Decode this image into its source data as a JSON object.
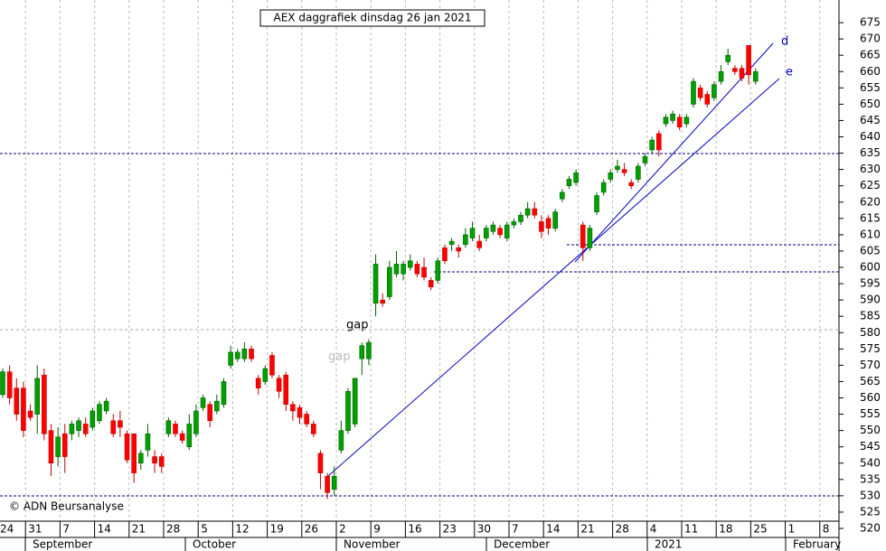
{
  "chart_data": {
    "type": "candlestick",
    "title": "AEX daggrafiek dinsdag 26 jan 2021",
    "copyright": "© ADN Beursanalyse",
    "annotations": [
      "gap",
      "gap",
      "d",
      "e"
    ],
    "ylim": [
      520,
      680
    ],
    "yticks": [
      520,
      525,
      530,
      535,
      540,
      545,
      550,
      555,
      560,
      565,
      570,
      575,
      580,
      585,
      590,
      595,
      600,
      605,
      610,
      615,
      620,
      625,
      630,
      635,
      640,
      645,
      650,
      655,
      660,
      665,
      670,
      675
    ],
    "xticks": [
      "24",
      "31",
      "7",
      "14",
      "21",
      "28",
      "5",
      "12",
      "19",
      "26",
      "2",
      "9",
      "16",
      "23",
      "30",
      "7",
      "14",
      "21",
      "28",
      "4",
      "11",
      "18",
      "25",
      "1",
      "8"
    ],
    "months": [
      "September",
      "October",
      "November",
      "December",
      "2021",
      "February"
    ],
    "up_color": "#00a000",
    "down_color": "#ff0000",
    "candles": [
      [
        561,
        569,
        560,
        568
      ],
      [
        568,
        570,
        558,
        560
      ],
      [
        563,
        566,
        553,
        555
      ],
      [
        563,
        565,
        548,
        550
      ],
      [
        556,
        558,
        553,
        554
      ],
      [
        555,
        570,
        549,
        566
      ],
      [
        567,
        569,
        547,
        549
      ],
      [
        550,
        552,
        536,
        540
      ],
      [
        542,
        551,
        539,
        548
      ],
      [
        549,
        552,
        537,
        542
      ],
      [
        549,
        553,
        547,
        552
      ],
      [
        550,
        554,
        548,
        553
      ],
      [
        552,
        554,
        548,
        549
      ],
      [
        551,
        557,
        550,
        556
      ],
      [
        553,
        559,
        552,
        558
      ],
      [
        556,
        560,
        555,
        559
      ],
      [
        553,
        555,
        548,
        549
      ],
      [
        553,
        556,
        548,
        551
      ],
      [
        549,
        550,
        540,
        541
      ],
      [
        549,
        549,
        534,
        537
      ],
      [
        540,
        544,
        538,
        543
      ],
      [
        544,
        552,
        542,
        549
      ],
      [
        542,
        544,
        537,
        540
      ],
      [
        542,
        543,
        537,
        539
      ],
      [
        549,
        554,
        548,
        553
      ],
      [
        552,
        553,
        548,
        549
      ],
      [
        549,
        550,
        546,
        547
      ],
      [
        545,
        555,
        544,
        552
      ],
      [
        549,
        558,
        548,
        556
      ],
      [
        557,
        561,
        556,
        560
      ],
      [
        558,
        559,
        551,
        553
      ],
      [
        556,
        561,
        555,
        559
      ],
      [
        558,
        566,
        557,
        565
      ],
      [
        570,
        576,
        569,
        574
      ],
      [
        572,
        575,
        571,
        574
      ],
      [
        572,
        577,
        571,
        575
      ],
      [
        575,
        576,
        571,
        572
      ],
      [
        566,
        567,
        561,
        563
      ],
      [
        565,
        570,
        564,
        569
      ],
      [
        573,
        574,
        566,
        567
      ],
      [
        566,
        567,
        560,
        562
      ],
      [
        567,
        568,
        556,
        558
      ],
      [
        558,
        559,
        553,
        556
      ],
      [
        557,
        558,
        552,
        554
      ],
      [
        555,
        556,
        551,
        552
      ],
      [
        552,
        553,
        548,
        549
      ],
      [
        543,
        544,
        532,
        537
      ],
      [
        536,
        537,
        529,
        531
      ],
      [
        532,
        539,
        530,
        536
      ],
      [
        544,
        553,
        543,
        550
      ],
      [
        550,
        563,
        549,
        562
      ],
      [
        552,
        566,
        551,
        566
      ],
      [
        572,
        577,
        567,
        576
      ],
      [
        572,
        578,
        570,
        577
      ],
      [
        589,
        604,
        585,
        601
      ],
      [
        590,
        592,
        588,
        589
      ],
      [
        591,
        602,
        590,
        600
      ],
      [
        598,
        605,
        597,
        601
      ],
      [
        598,
        602,
        596,
        601
      ],
      [
        600,
        604,
        599,
        602
      ],
      [
        601,
        602,
        597,
        598
      ],
      [
        600,
        603,
        596,
        597
      ],
      [
        596,
        597,
        593,
        594
      ],
      [
        596,
        603,
        595,
        602
      ],
      [
        606,
        607,
        601,
        602
      ],
      [
        607,
        609,
        605,
        608
      ],
      [
        606,
        607,
        603,
        605
      ],
      [
        607,
        612,
        606,
        610
      ],
      [
        609,
        614,
        608,
        612
      ],
      [
        608,
        610,
        605,
        606
      ],
      [
        609,
        613,
        608,
        612
      ],
      [
        611,
        614,
        610,
        613
      ],
      [
        612,
        613,
        609,
        610
      ],
      [
        609,
        614,
        608,
        613
      ],
      [
        613,
        615,
        612,
        614
      ],
      [
        614,
        617,
        613,
        616
      ],
      [
        616,
        620,
        615,
        618
      ],
      [
        618,
        620,
        615,
        616
      ],
      [
        614,
        616,
        609,
        611
      ],
      [
        615,
        616,
        610,
        612
      ],
      [
        612,
        618,
        611,
        617
      ],
      [
        621,
        624,
        620,
        623
      ],
      [
        625,
        628,
        624,
        627
      ],
      [
        626,
        630,
        625,
        629
      ],
      [
        613,
        614,
        602,
        606
      ],
      [
        606,
        613,
        605,
        612
      ],
      [
        617,
        623,
        616,
        622
      ],
      [
        623,
        627,
        622,
        626
      ],
      [
        627,
        630,
        626,
        629
      ],
      [
        630,
        633,
        629,
        631
      ],
      [
        630,
        632,
        628,
        629
      ],
      [
        626,
        627,
        624,
        625
      ],
      [
        627,
        632,
        626,
        631
      ],
      [
        632,
        635,
        631,
        634
      ],
      [
        636,
        640,
        635,
        639
      ],
      [
        641,
        642,
        634,
        636
      ],
      [
        644,
        647,
        643,
        646
      ],
      [
        645,
        648,
        644,
        647
      ],
      [
        646,
        647,
        642,
        643
      ],
      [
        644,
        647,
        643,
        646
      ],
      [
        650,
        658,
        649,
        657
      ],
      [
        655,
        656,
        651,
        652
      ],
      [
        653,
        654,
        649,
        650
      ],
      [
        652,
        657,
        651,
        656
      ],
      [
        657,
        662,
        656,
        660
      ],
      [
        663,
        667,
        662,
        665
      ],
      [
        661,
        662,
        659,
        660
      ],
      [
        661,
        662,
        657,
        658
      ],
      [
        668,
        668,
        656,
        659
      ],
      [
        657,
        661,
        656,
        660
      ]
    ]
  }
}
